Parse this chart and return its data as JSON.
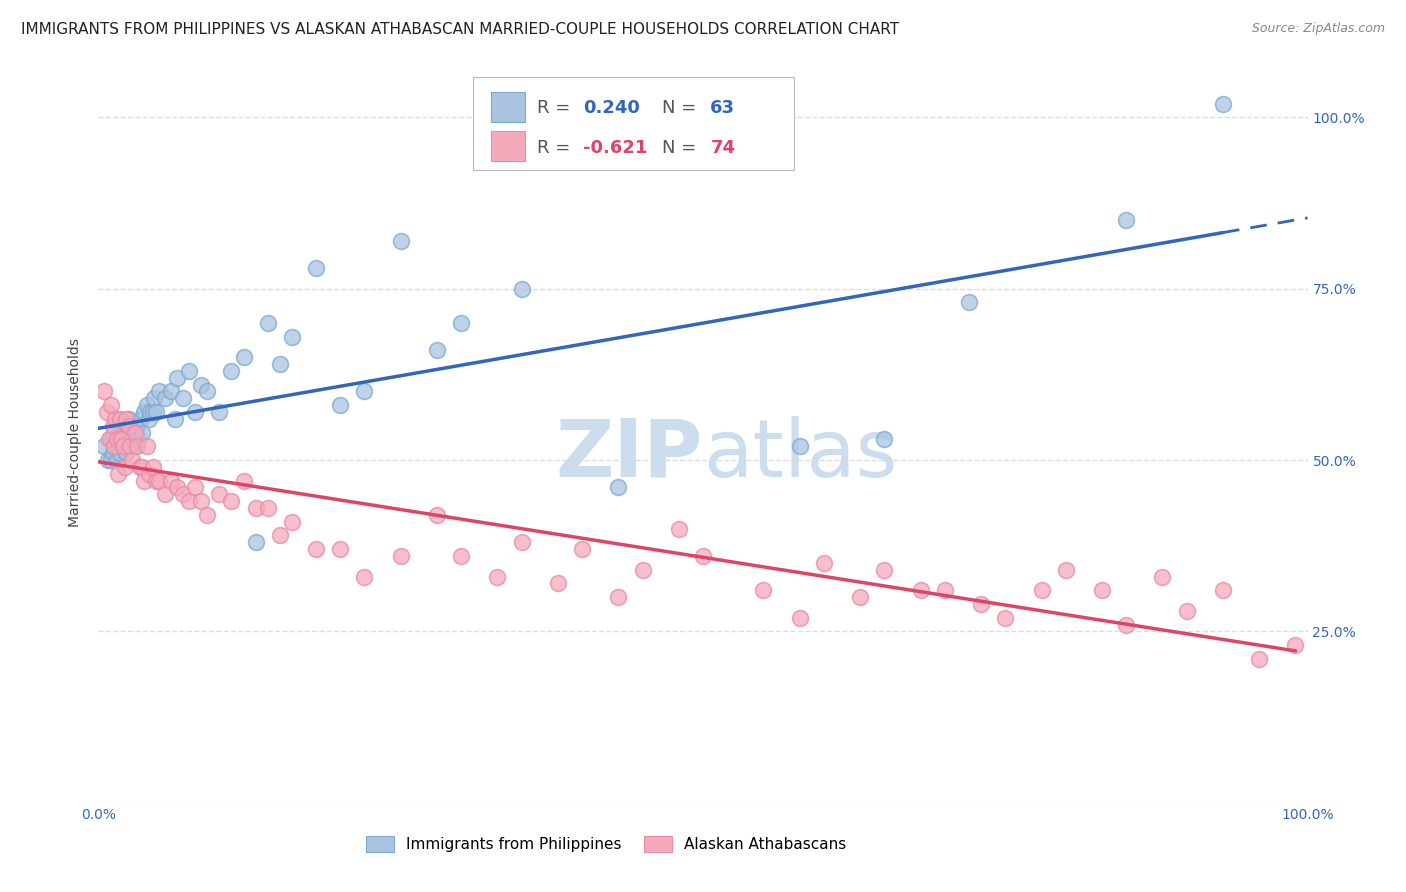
{
  "title": "IMMIGRANTS FROM PHILIPPINES VS ALASKAN ATHABASCAN MARRIED-COUPLE HOUSEHOLDS CORRELATION CHART",
  "source": "Source: ZipAtlas.com",
  "ylabel": "Married-couple Households",
  "xlim": [
    0,
    1
  ],
  "ylim": [
    0,
    1.08
  ],
  "ytick_positions": [
    0.25,
    0.5,
    0.75,
    1.0
  ],
  "ytick_labels": [
    "25.0%",
    "50.0%",
    "75.0%",
    "100.0%"
  ],
  "xtick_positions": [
    0,
    0.125,
    0.25,
    0.375,
    0.5,
    0.625,
    0.75,
    0.875,
    1.0
  ],
  "xtick_left_labels": [
    "0.0%",
    "",
    "",
    "",
    "",
    "",
    "",
    "",
    "100.0%"
  ],
  "blue_R": 0.24,
  "blue_N": 63,
  "pink_R": -0.621,
  "pink_N": 74,
  "blue_color": "#aac4e0",
  "pink_color": "#f5aabb",
  "blue_edge_color": "#7aaad0",
  "pink_edge_color": "#e88aa8",
  "blue_line_color": "#3366bb",
  "pink_line_color": "#dd4466",
  "right_tick_color": "#3366bb",
  "watermark_color": "#ccdded",
  "background_color": "#ffffff",
  "grid_color": "#dddddd",
  "blue_points_x": [
    0.005,
    0.008,
    0.01,
    0.01,
    0.012,
    0.013,
    0.015,
    0.015,
    0.016,
    0.017,
    0.018,
    0.02,
    0.02,
    0.022,
    0.023,
    0.024,
    0.025,
    0.026,
    0.027,
    0.028,
    0.03,
    0.03,
    0.032,
    0.033,
    0.035,
    0.036,
    0.038,
    0.04,
    0.042,
    0.043,
    0.045,
    0.046,
    0.048,
    0.05,
    0.055,
    0.06,
    0.063,
    0.065,
    0.07,
    0.075,
    0.08,
    0.085,
    0.09,
    0.1,
    0.11,
    0.12,
    0.13,
    0.14,
    0.15,
    0.16,
    0.18,
    0.2,
    0.22,
    0.25,
    0.28,
    0.3,
    0.35,
    0.43,
    0.58,
    0.65,
    0.72,
    0.85,
    0.93
  ],
  "blue_points_y": [
    0.52,
    0.5,
    0.53,
    0.5,
    0.51,
    0.54,
    0.53,
    0.5,
    0.52,
    0.55,
    0.51,
    0.54,
    0.52,
    0.53,
    0.51,
    0.55,
    0.56,
    0.53,
    0.52,
    0.55,
    0.54,
    0.52,
    0.55,
    0.53,
    0.56,
    0.54,
    0.57,
    0.58,
    0.56,
    0.57,
    0.57,
    0.59,
    0.57,
    0.6,
    0.59,
    0.6,
    0.56,
    0.62,
    0.59,
    0.63,
    0.57,
    0.61,
    0.6,
    0.57,
    0.63,
    0.65,
    0.38,
    0.7,
    0.64,
    0.68,
    0.78,
    0.58,
    0.6,
    0.82,
    0.66,
    0.7,
    0.75,
    0.46,
    0.52,
    0.53,
    0.73,
    0.85,
    1.02
  ],
  "pink_points_x": [
    0.005,
    0.007,
    0.009,
    0.01,
    0.012,
    0.013,
    0.014,
    0.015,
    0.016,
    0.018,
    0.019,
    0.02,
    0.022,
    0.023,
    0.025,
    0.026,
    0.028,
    0.03,
    0.032,
    0.034,
    0.036,
    0.038,
    0.04,
    0.042,
    0.045,
    0.048,
    0.05,
    0.055,
    0.06,
    0.065,
    0.07,
    0.075,
    0.08,
    0.085,
    0.09,
    0.1,
    0.11,
    0.12,
    0.13,
    0.14,
    0.15,
    0.16,
    0.18,
    0.2,
    0.22,
    0.25,
    0.28,
    0.3,
    0.33,
    0.35,
    0.38,
    0.4,
    0.43,
    0.45,
    0.48,
    0.5,
    0.55,
    0.58,
    0.6,
    0.63,
    0.65,
    0.68,
    0.7,
    0.73,
    0.75,
    0.78,
    0.8,
    0.83,
    0.85,
    0.88,
    0.9,
    0.93,
    0.96,
    0.99
  ],
  "pink_points_y": [
    0.6,
    0.57,
    0.53,
    0.58,
    0.55,
    0.52,
    0.56,
    0.53,
    0.48,
    0.56,
    0.53,
    0.52,
    0.49,
    0.56,
    0.55,
    0.52,
    0.5,
    0.54,
    0.52,
    0.49,
    0.49,
    0.47,
    0.52,
    0.48,
    0.49,
    0.47,
    0.47,
    0.45,
    0.47,
    0.46,
    0.45,
    0.44,
    0.46,
    0.44,
    0.42,
    0.45,
    0.44,
    0.47,
    0.43,
    0.43,
    0.39,
    0.41,
    0.37,
    0.37,
    0.33,
    0.36,
    0.42,
    0.36,
    0.33,
    0.38,
    0.32,
    0.37,
    0.3,
    0.34,
    0.4,
    0.36,
    0.31,
    0.27,
    0.35,
    0.3,
    0.34,
    0.31,
    0.31,
    0.29,
    0.27,
    0.31,
    0.34,
    0.31,
    0.26,
    0.33,
    0.28,
    0.31,
    0.21,
    0.23
  ],
  "legend_blue_label": "Immigrants from Philippines",
  "legend_pink_label": "Alaskan Athabascans",
  "title_fontsize": 11,
  "axis_label_fontsize": 10,
  "tick_fontsize": 10,
  "legend_fontsize": 11,
  "marker_size": 130
}
